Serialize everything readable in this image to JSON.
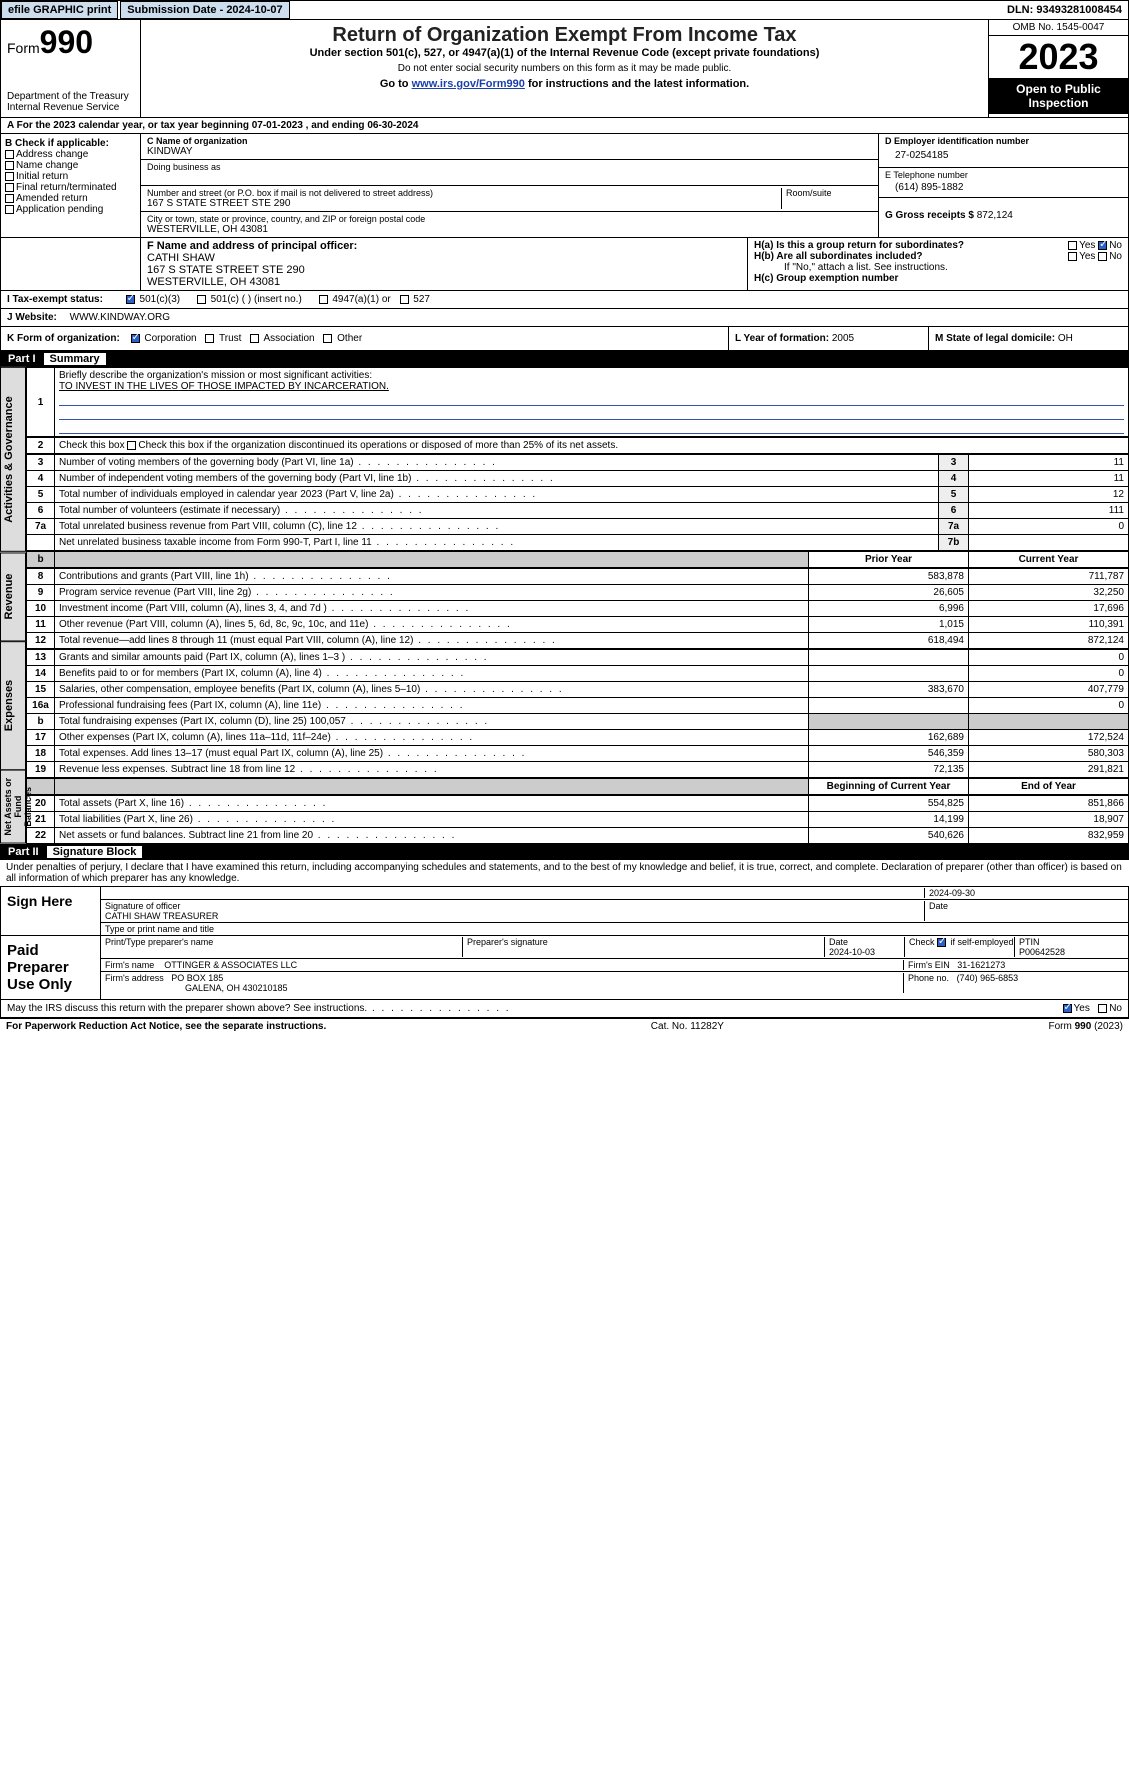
{
  "topbar": {
    "efile": "efile GRAPHIC print",
    "submission": "Submission Date - 2024-10-07",
    "dln": "DLN: 93493281008454"
  },
  "header": {
    "form": "Form",
    "formnum": "990",
    "dept": "Department of the Treasury\nInternal Revenue Service",
    "title": "Return of Organization Exempt From Income Tax",
    "subtitle": "Under section 501(c), 527, or 4947(a)(1) of the Internal Revenue Code (except private foundations)",
    "note1": "Do not enter social security numbers on this form as it may be made public.",
    "note2": "Go to ",
    "link": "www.irs.gov/Form990",
    "note3": " for instructions and the latest information.",
    "omb": "OMB No. 1545-0047",
    "year": "2023",
    "inspect": "Open to Public Inspection"
  },
  "rowA": "A For the 2023 calendar year, or tax year beginning 07-01-2023    , and ending 06-30-2024",
  "boxB": {
    "label": "B Check if applicable:",
    "items": [
      "Address change",
      "Name change",
      "Initial return",
      "Final return/terminated",
      "Amended return",
      "Application pending"
    ]
  },
  "boxC": {
    "nameLbl": "C Name of organization",
    "name": "KINDWAY",
    "dbaLbl": "Doing business as",
    "streetLbl": "Number and street (or P.O. box if mail is not delivered to street address)",
    "street": "167 S STATE STREET STE 290",
    "roomLbl": "Room/suite",
    "cityLbl": "City or town, state or province, country, and ZIP or foreign postal code",
    "city": "WESTERVILLE, OH  43081"
  },
  "boxD": {
    "lbl": "D Employer identification number",
    "val": "27-0254185"
  },
  "boxE": {
    "lbl": "E Telephone number",
    "val": "(614) 895-1882"
  },
  "boxG": {
    "lbl": "G Gross receipts $ ",
    "val": "872,124"
  },
  "boxF": {
    "lbl": "F  Name and address of principal officer:",
    "name": "CATHI SHAW",
    "addr1": "167 S STATE STREET STE 290",
    "addr2": "WESTERVILLE, OH  43081"
  },
  "boxH": {
    "ha": "H(a)  Is this a group return for subordinates?",
    "hb": "H(b)  Are all subordinates included?",
    "hbNote": "If \"No,\" attach a list. See instructions.",
    "hc": "H(c)  Group exemption number",
    "yes": "Yes",
    "no": "No"
  },
  "taxExempt": {
    "lbl": "I   Tax-exempt status:",
    "opts": [
      "501(c)(3)",
      "501(c) (  ) (insert no.)",
      "4947(a)(1) or",
      "527"
    ]
  },
  "website": {
    "lbl": "J   Website:",
    "val": "WWW.KINDWAY.ORG"
  },
  "formOrg": {
    "lbl": "K Form of organization:",
    "opts": [
      "Corporation",
      "Trust",
      "Association",
      "Other"
    ]
  },
  "boxL": {
    "lbl": "L Year of formation: ",
    "val": "2005"
  },
  "boxM": {
    "lbl": "M State of legal domicile: ",
    "val": "OH"
  },
  "part1": {
    "label": "Part I",
    "title": "Summary"
  },
  "mission": {
    "lbl": "Briefly describe the organization's mission or most significant activities:",
    "txt": "TO INVEST IN THE LIVES OF THOSE IMPACTED BY INCARCERATION."
  },
  "line2": "Check this box      if the organization discontinued its operations or disposed of more than 25% of its net assets.",
  "govLines": [
    {
      "n": "3",
      "t": "Number of voting members of the governing body (Part VI, line 1a)",
      "c": "3",
      "v": "11"
    },
    {
      "n": "4",
      "t": "Number of independent voting members of the governing body (Part VI, line 1b)",
      "c": "4",
      "v": "11"
    },
    {
      "n": "5",
      "t": "Total number of individuals employed in calendar year 2023 (Part V, line 2a)",
      "c": "5",
      "v": "12"
    },
    {
      "n": "6",
      "t": "Total number of volunteers (estimate if necessary)",
      "c": "6",
      "v": "111"
    },
    {
      "n": "7a",
      "t": "Total unrelated business revenue from Part VIII, column (C), line 12",
      "c": "7a",
      "v": "0"
    },
    {
      "n": "",
      "t": "Net unrelated business taxable income from Form 990-T, Part I, line 11",
      "c": "7b",
      "v": ""
    }
  ],
  "colHdr": {
    "prior": "Prior Year",
    "current": "Current Year"
  },
  "revenue": [
    {
      "n": "8",
      "t": "Contributions and grants (Part VIII, line 1h)",
      "p": "583,878",
      "c": "711,787"
    },
    {
      "n": "9",
      "t": "Program service revenue (Part VIII, line 2g)",
      "p": "26,605",
      "c": "32,250"
    },
    {
      "n": "10",
      "t": "Investment income (Part VIII, column (A), lines 3, 4, and 7d )",
      "p": "6,996",
      "c": "17,696"
    },
    {
      "n": "11",
      "t": "Other revenue (Part VIII, column (A), lines 5, 6d, 8c, 9c, 10c, and 11e)",
      "p": "1,015",
      "c": "110,391"
    },
    {
      "n": "12",
      "t": "Total revenue—add lines 8 through 11 (must equal Part VIII, column (A), line 12)",
      "p": "618,494",
      "c": "872,124"
    }
  ],
  "expenses": [
    {
      "n": "13",
      "t": "Grants and similar amounts paid (Part IX, column (A), lines 1–3 )",
      "p": "",
      "c": "0"
    },
    {
      "n": "14",
      "t": "Benefits paid to or for members (Part IX, column (A), line 4)",
      "p": "",
      "c": "0"
    },
    {
      "n": "15",
      "t": "Salaries, other compensation, employee benefits (Part IX, column (A), lines 5–10)",
      "p": "383,670",
      "c": "407,779"
    },
    {
      "n": "16a",
      "t": "Professional fundraising fees (Part IX, column (A), line 11e)",
      "p": "",
      "c": "0"
    },
    {
      "n": "b",
      "t": "Total fundraising expenses (Part IX, column (D), line 25) 100,057",
      "p": "SHADE",
      "c": "SHADE"
    },
    {
      "n": "17",
      "t": "Other expenses (Part IX, column (A), lines 11a–11d, 11f–24e)",
      "p": "162,689",
      "c": "172,524"
    },
    {
      "n": "18",
      "t": "Total expenses. Add lines 13–17 (must equal Part IX, column (A), line 25)",
      "p": "546,359",
      "c": "580,303"
    },
    {
      "n": "19",
      "t": "Revenue less expenses. Subtract line 18 from line 12",
      "p": "72,135",
      "c": "291,821"
    }
  ],
  "netHdr": {
    "begin": "Beginning of Current Year",
    "end": "End of Year"
  },
  "net": [
    {
      "n": "20",
      "t": "Total assets (Part X, line 16)",
      "p": "554,825",
      "c": "851,866"
    },
    {
      "n": "21",
      "t": "Total liabilities (Part X, line 26)",
      "p": "14,199",
      "c": "18,907"
    },
    {
      "n": "22",
      "t": "Net assets or fund balances. Subtract line 21 from line 20",
      "p": "540,626",
      "c": "832,959"
    }
  ],
  "sideLabels": {
    "gov": "Activities & Governance",
    "rev": "Revenue",
    "exp": "Expenses",
    "net": "Net Assets or Fund Balances"
  },
  "part2": {
    "label": "Part II",
    "title": "Signature Block"
  },
  "perjury": "Under penalties of perjury, I declare that I have examined this return, including accompanying schedules and statements, and to the best of my knowledge and belief, it is true, correct, and complete. Declaration of preparer (other than officer) is based on all information of which preparer has any knowledge.",
  "sign": {
    "here": "Sign Here",
    "sigLbl": "Signature of officer",
    "officer": "CATHI SHAW TREASURER",
    "typeLbl": "Type or print name and title",
    "date": "2024-09-30",
    "dateLbl": "Date"
  },
  "paid": {
    "lbl": "Paid Preparer Use Only",
    "printLbl": "Print/Type preparer's name",
    "sigLbl": "Preparer's signature",
    "dateLbl": "Date",
    "date": "2024-10-03",
    "checkLbl": "Check        if self-employed",
    "ptinLbl": "PTIN",
    "ptin": "P00642528",
    "firmNameLbl": "Firm's name",
    "firmName": "OTTINGER & ASSOCIATES LLC",
    "firmEinLbl": "Firm's EIN",
    "firmEin": "31-1621273",
    "firmAddrLbl": "Firm's address",
    "firmAddr": "PO BOX 185",
    "firmCity": "GALENA, OH  430210185",
    "phoneLbl": "Phone no.",
    "phone": "(740) 965-6853"
  },
  "discuss": "May the IRS discuss this return with the preparer shown above? See instructions.",
  "footer": {
    "paperwork": "For Paperwork Reduction Act Notice, see the separate instructions.",
    "cat": "Cat. No. 11282Y",
    "form": "Form 990 (2023)"
  }
}
